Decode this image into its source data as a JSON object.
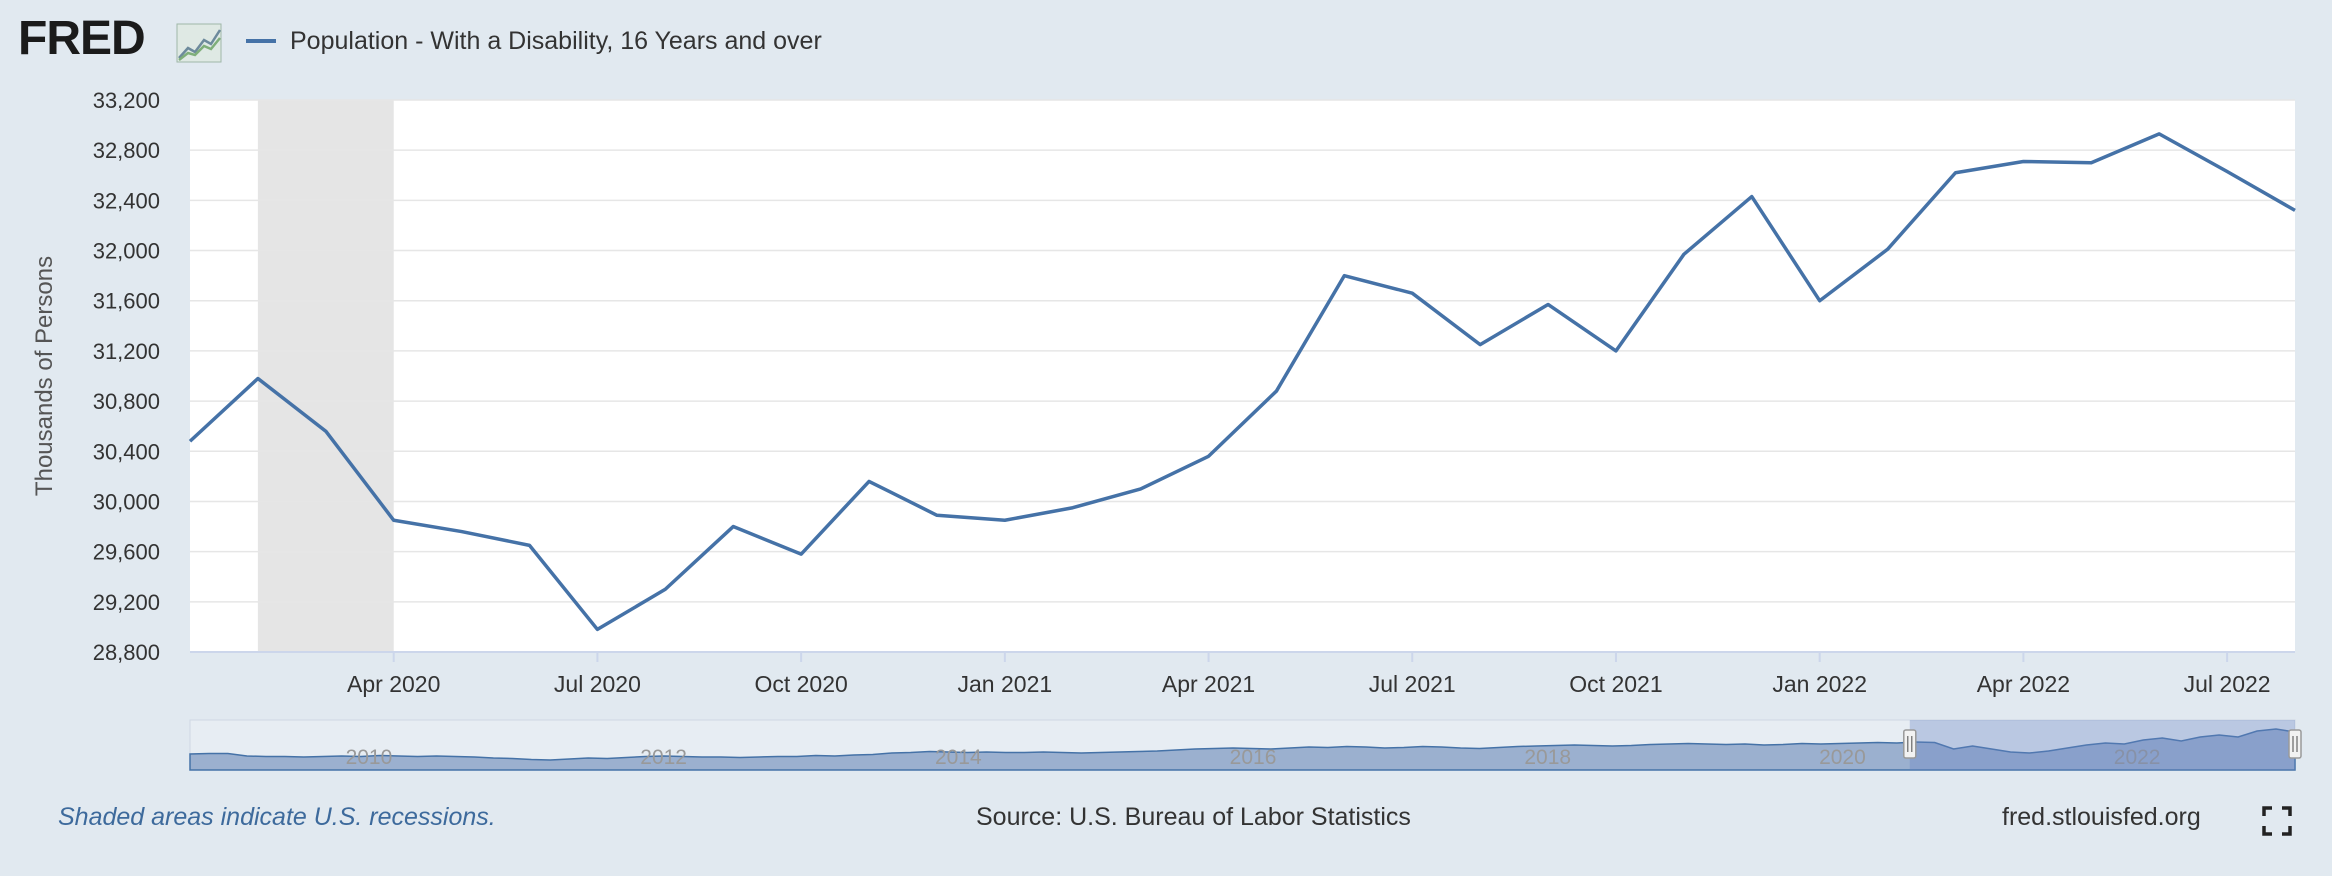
{
  "header": {
    "logo_text": "FRED",
    "legend_label": "Population - With a Disability, 16 Years and over",
    "series_color": "#4572a7"
  },
  "chart_data": {
    "type": "line",
    "title": "",
    "ylabel": "Thousands of Persons",
    "xlabel": "",
    "ylim": [
      28800,
      33200
    ],
    "y_ticks": [
      28800,
      29200,
      29600,
      30000,
      30400,
      30800,
      31200,
      31600,
      32000,
      32400,
      32800,
      33200
    ],
    "y_tick_labels": [
      "28,800",
      "29,200",
      "29,600",
      "30,000",
      "30,400",
      "30,800",
      "31,200",
      "31,600",
      "32,000",
      "32,400",
      "32,800",
      "33,200"
    ],
    "x_range": [
      "2020-01",
      "2022-08"
    ],
    "x_ticks": [
      {
        "date": "2020-04",
        "label": "Apr 2020"
      },
      {
        "date": "2020-07",
        "label": "Jul 2020"
      },
      {
        "date": "2020-10",
        "label": "Oct 2020"
      },
      {
        "date": "2021-01",
        "label": "Jan 2021"
      },
      {
        "date": "2021-04",
        "label": "Apr 2021"
      },
      {
        "date": "2021-07",
        "label": "Jul 2021"
      },
      {
        "date": "2021-10",
        "label": "Oct 2021"
      },
      {
        "date": "2022-01",
        "label": "Jan 2022"
      },
      {
        "date": "2022-04",
        "label": "Apr 2022"
      },
      {
        "date": "2022-07",
        "label": "Jul 2022"
      }
    ],
    "series": [
      {
        "name": "Population - With a Disability, 16 Years and over",
        "color": "#4572a7",
        "x": [
          "2020-01",
          "2020-02",
          "2020-03",
          "2020-04",
          "2020-05",
          "2020-06",
          "2020-07",
          "2020-08",
          "2020-09",
          "2020-10",
          "2020-11",
          "2020-12",
          "2021-01",
          "2021-02",
          "2021-03",
          "2021-04",
          "2021-05",
          "2021-06",
          "2021-07",
          "2021-08",
          "2021-09",
          "2021-10",
          "2021-11",
          "2021-12",
          "2022-01",
          "2022-02",
          "2022-03",
          "2022-04",
          "2022-05",
          "2022-06",
          "2022-07",
          "2022-08"
        ],
        "values": [
          30480,
          30980,
          30560,
          29850,
          29760,
          29650,
          28980,
          29300,
          29800,
          29580,
          30160,
          29890,
          29850,
          29950,
          30100,
          30360,
          30880,
          31800,
          31660,
          31250,
          31570,
          31200,
          31970,
          32430,
          31600,
          32010,
          32620,
          32710,
          32700,
          32930,
          32630,
          32320
        ]
      }
    ],
    "recessions": [
      {
        "start": "2020-02",
        "end": "2020-04"
      }
    ],
    "grid": true,
    "navigator": {
      "year_labels": [
        "2010",
        "2012",
        "2014",
        "2016",
        "2018",
        "2020",
        "2022"
      ],
      "series_values": [
        30100,
        30150,
        30150,
        29900,
        29850,
        29850,
        29800,
        29850,
        29900,
        29850,
        29950,
        29900,
        29850,
        29900,
        29850,
        29800,
        29700,
        29650,
        29550,
        29500,
        29600,
        29700,
        29650,
        29750,
        29850,
        29900,
        29850,
        29800,
        29800,
        29750,
        29800,
        29850,
        29850,
        29950,
        29900,
        30000,
        30050,
        30200,
        30250,
        30350,
        30300,
        30250,
        30300,
        30250,
        30250,
        30300,
        30250,
        30200,
        30250,
        30300,
        30350,
        30400,
        30500,
        30600,
        30650,
        30700,
        30650,
        30600,
        30700,
        30800,
        30750,
        30850,
        30800,
        30700,
        30750,
        30850,
        30800,
        30700,
        30650,
        30750,
        30850,
        30900,
        30950,
        31000,
        30950,
        30900,
        30950,
        31050,
        31100,
        31150,
        31100,
        31050,
        31100,
        31000,
        31050,
        31150,
        31100,
        31150,
        31200,
        31250,
        31200,
        31300,
        31250,
        30600,
        30900,
        30600,
        30300,
        30200,
        30400,
        30700,
        31000,
        31200,
        31100,
        31500,
        31700,
        31400,
        31800,
        32000,
        31800,
        32400,
        32600,
        32300
      ],
      "selected_range": [
        "2020-01",
        "2022-08"
      ]
    }
  },
  "footer": {
    "note": "Shaded areas indicate U.S. recessions.",
    "source": "Source: U.S. Bureau of Labor Statistics",
    "site": "fred.stlouisfed.org"
  }
}
